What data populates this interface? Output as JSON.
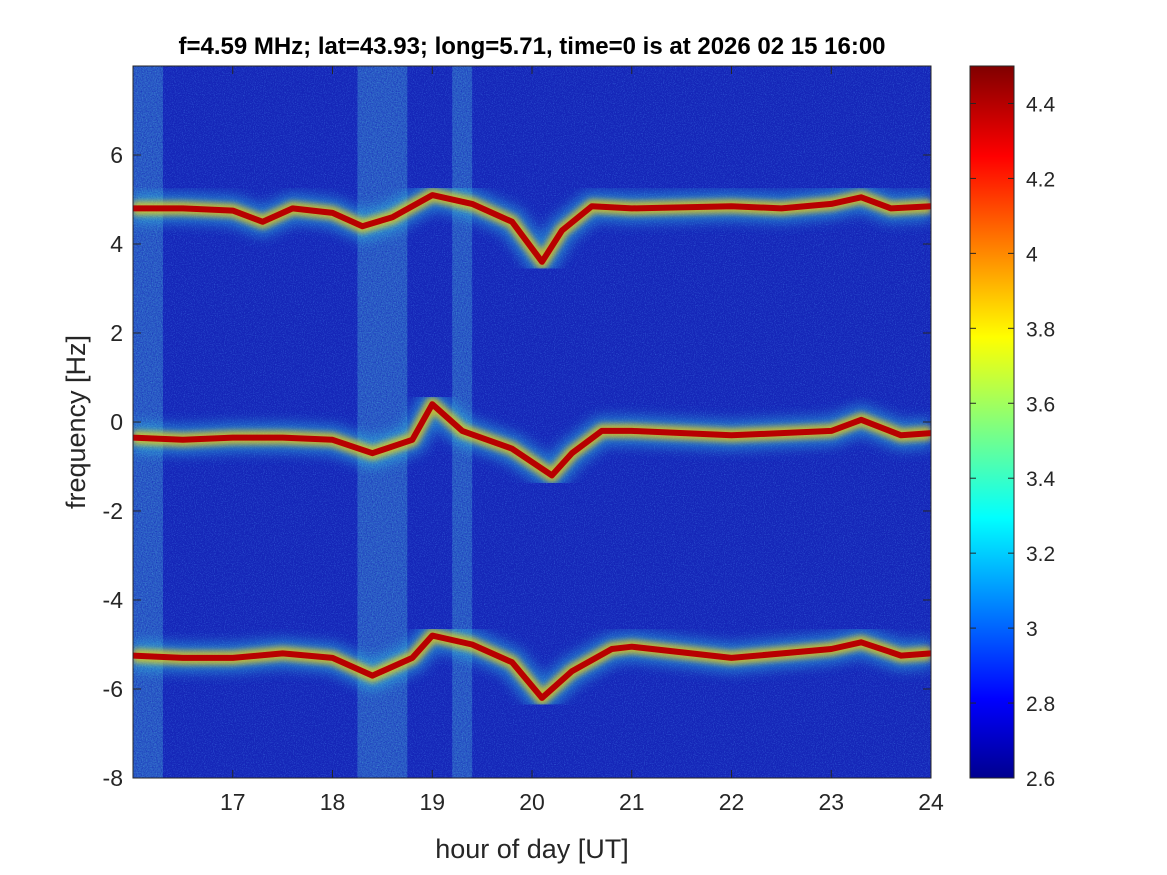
{
  "chart_data": {
    "type": "heatmap",
    "title": "f=4.59 MHz;  lat=43.93; long=5.71, time=0 is at 2026 02 15 16:00",
    "xlabel": "hour of day [UT]",
    "ylabel": "frequency [Hz]",
    "xlim": [
      16,
      24
    ],
    "ylim": [
      -8,
      8
    ],
    "xticks": [
      17,
      18,
      19,
      20,
      21,
      22,
      23,
      24
    ],
    "yticks": [
      -8,
      -6,
      -4,
      -2,
      0,
      2,
      4,
      6
    ],
    "colormap": "jet",
    "clim": [
      2.6,
      4.5
    ],
    "colorbar_ticks": [
      2.6,
      2.8,
      3,
      3.2,
      3.4,
      3.6,
      3.8,
      4,
      4.2,
      4.4
    ],
    "traces": [
      {
        "name": "upper",
        "points": [
          [
            16.0,
            4.8
          ],
          [
            16.5,
            4.8
          ],
          [
            17.0,
            4.75
          ],
          [
            17.3,
            4.5
          ],
          [
            17.6,
            4.8
          ],
          [
            18.0,
            4.7
          ],
          [
            18.3,
            4.4
          ],
          [
            18.6,
            4.6
          ],
          [
            19.0,
            5.1
          ],
          [
            19.4,
            4.9
          ],
          [
            19.8,
            4.5
          ],
          [
            20.1,
            3.6
          ],
          [
            20.3,
            4.3
          ],
          [
            20.6,
            4.85
          ],
          [
            21.0,
            4.8
          ],
          [
            22.0,
            4.85
          ],
          [
            22.5,
            4.8
          ],
          [
            23.0,
            4.9
          ],
          [
            23.3,
            5.05
          ],
          [
            23.6,
            4.8
          ],
          [
            24.0,
            4.85
          ]
        ]
      },
      {
        "name": "center",
        "points": [
          [
            16.0,
            -0.35
          ],
          [
            16.5,
            -0.4
          ],
          [
            17.0,
            -0.35
          ],
          [
            17.5,
            -0.35
          ],
          [
            18.0,
            -0.4
          ],
          [
            18.4,
            -0.7
          ],
          [
            18.8,
            -0.4
          ],
          [
            19.0,
            0.4
          ],
          [
            19.3,
            -0.2
          ],
          [
            19.8,
            -0.6
          ],
          [
            20.2,
            -1.2
          ],
          [
            20.4,
            -0.7
          ],
          [
            20.7,
            -0.2
          ],
          [
            21.0,
            -0.2
          ],
          [
            22.0,
            -0.3
          ],
          [
            23.0,
            -0.2
          ],
          [
            23.3,
            0.05
          ],
          [
            23.7,
            -0.3
          ],
          [
            24.0,
            -0.25
          ]
        ]
      },
      {
        "name": "lower",
        "points": [
          [
            16.0,
            -5.25
          ],
          [
            16.5,
            -5.3
          ],
          [
            17.0,
            -5.3
          ],
          [
            17.5,
            -5.2
          ],
          [
            18.0,
            -5.3
          ],
          [
            18.4,
            -5.7
          ],
          [
            18.8,
            -5.3
          ],
          [
            19.0,
            -4.8
          ],
          [
            19.4,
            -5.0
          ],
          [
            19.8,
            -5.4
          ],
          [
            20.1,
            -6.2
          ],
          [
            20.4,
            -5.6
          ],
          [
            20.8,
            -5.1
          ],
          [
            21.0,
            -5.05
          ],
          [
            22.0,
            -5.3
          ],
          [
            23.0,
            -5.1
          ],
          [
            23.3,
            -4.95
          ],
          [
            23.7,
            -5.25
          ],
          [
            24.0,
            -5.2
          ]
        ]
      }
    ],
    "broadband_bands": [
      {
        "from": 16.0,
        "to": 16.3
      },
      {
        "from": 18.25,
        "to": 18.75
      },
      {
        "from": 19.2,
        "to": 19.4
      }
    ]
  }
}
